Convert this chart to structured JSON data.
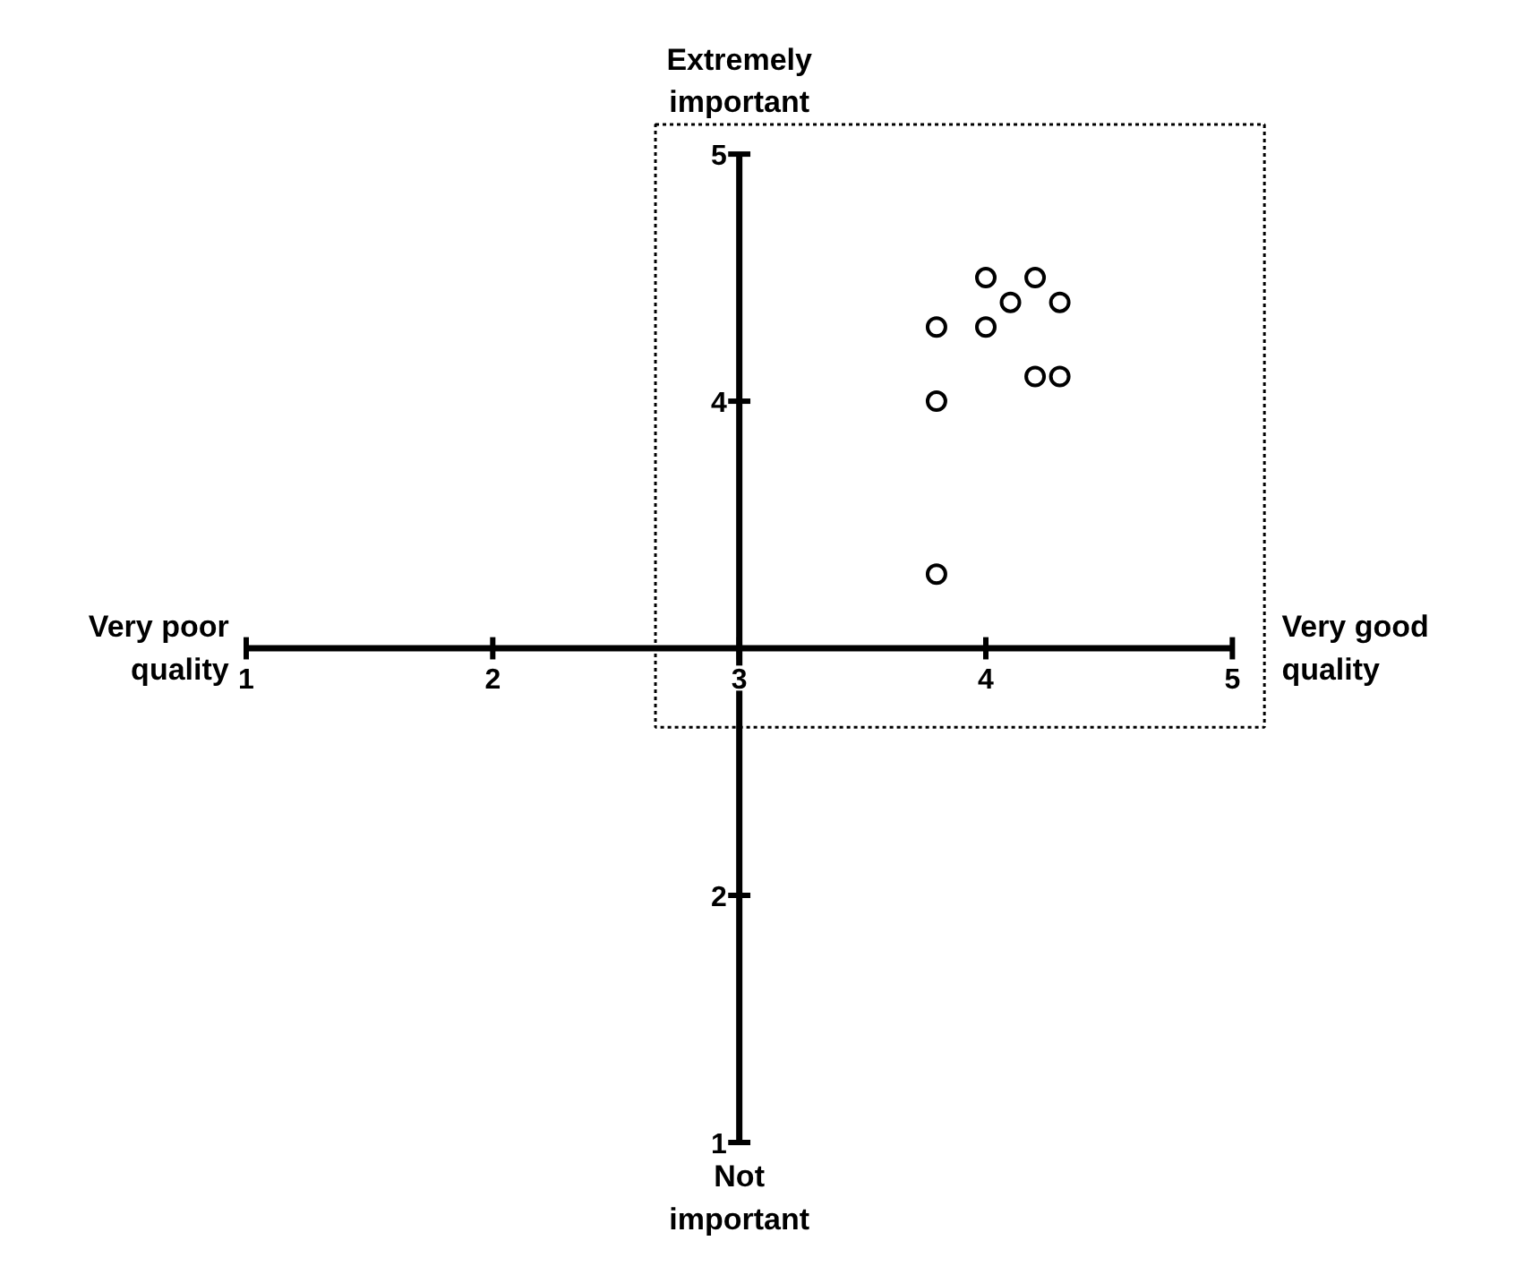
{
  "chart_data": {
    "type": "scatter",
    "marker": "circle",
    "grid": false,
    "x": [
      3.8,
      4.0,
      4.0,
      4.1,
      4.2,
      4.3,
      4.2,
      4.3,
      3.8,
      3.8
    ],
    "values": [
      4.3,
      4.5,
      4.3,
      4.4,
      4.5,
      4.4,
      4.1,
      4.1,
      4.0,
      3.3
    ],
    "color": "#000000",
    "xlim": [
      1,
      5
    ],
    "ylim": [
      1,
      5
    ],
    "xticks": [
      1,
      2,
      3,
      4,
      5
    ],
    "yticks": [
      1,
      2,
      4,
      5
    ],
    "annotations": [
      "Very poor\nquality",
      "Very good\nquality",
      "Extremely\nimportant",
      "Not\nimportant"
    ]
  }
}
